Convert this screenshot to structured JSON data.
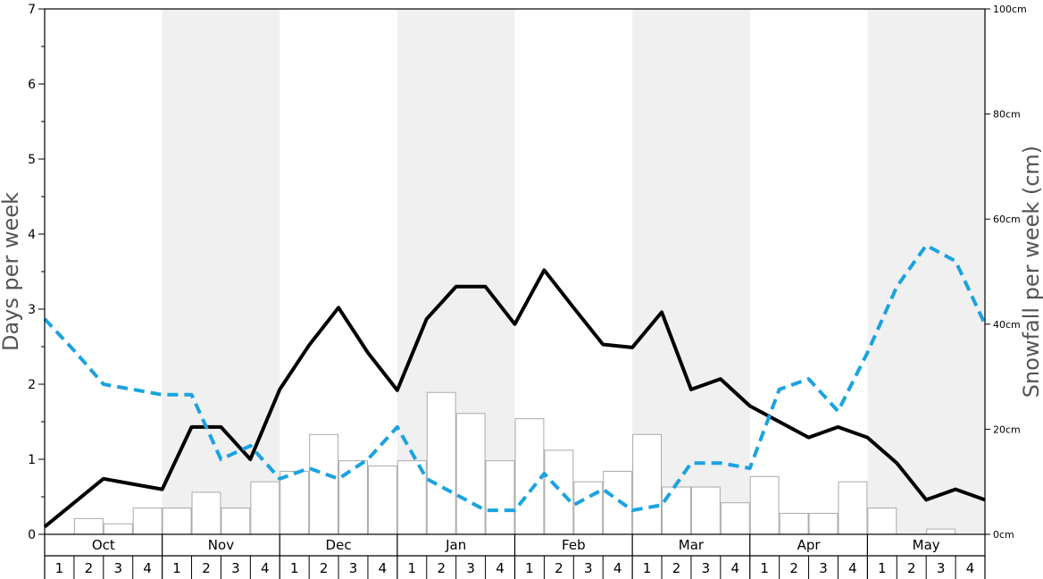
{
  "chart_data": {
    "type": "bar",
    "title": "",
    "ylabel_left": "Days per week",
    "ylabel_right": "Snowfall per week (cm)",
    "ylim_left": [
      0,
      7
    ],
    "ylim_right": [
      0,
      100
    ],
    "left_ticks": [
      "0",
      "1",
      "2",
      "3",
      "4",
      "5",
      "6",
      "7"
    ],
    "right_ticks": [
      "0cm",
      "20cm",
      "40cm",
      "60cm",
      "80cm",
      "100cm"
    ],
    "months": [
      "Oct",
      "Nov",
      "Dec",
      "Jan",
      "Feb",
      "Mar",
      "Apr",
      "May"
    ],
    "week_labels": [
      "1",
      "2",
      "3",
      "4"
    ],
    "shaded_months": [
      "Nov",
      "Jan",
      "Mar",
      "May"
    ],
    "grid": false,
    "colors": {
      "line1": "#000000",
      "line2": "#1aa3e0",
      "bar_fill": "#ffffff",
      "bar_stroke": "#aaaaaa",
      "shade": "#f0f0f0"
    },
    "series": [
      {
        "kind": "bar",
        "axis": "right",
        "values": [
          0,
          3,
          2,
          5,
          5,
          8,
          5,
          10,
          12,
          19,
          14,
          13,
          14,
          27,
          23,
          14,
          22,
          16,
          10,
          12,
          19,
          9,
          9,
          6,
          11,
          4,
          4,
          10,
          5,
          0,
          1,
          0
        ]
      },
      {
        "kind": "line",
        "axis": "left",
        "style": "solid",
        "values": [
          0.1,
          0.42,
          0.74,
          0.67,
          0.6,
          1.43,
          1.43,
          1.0,
          1.93,
          2.52,
          3.02,
          2.42,
          1.92,
          2.87,
          3.3,
          3.3,
          2.8,
          3.52,
          3.02,
          2.53,
          2.49,
          2.96,
          1.93,
          2.07,
          1.71,
          1.5,
          1.29,
          1.43,
          1.29,
          0.95,
          0.46,
          0.6,
          0.46
        ]
      },
      {
        "kind": "line",
        "axis": "left",
        "style": "dashed",
        "values": [
          2.87,
          2.45,
          2.0,
          1.93,
          1.86,
          1.86,
          1.0,
          1.18,
          0.74,
          0.88,
          0.74,
          1.0,
          1.43,
          0.74,
          0.53,
          0.32,
          0.32,
          0.81,
          0.39,
          0.6,
          0.32,
          0.39,
          0.95,
          0.95,
          0.88,
          1.93,
          2.07,
          1.64,
          2.42,
          3.3,
          3.85,
          3.64,
          2.8
        ]
      }
    ]
  }
}
